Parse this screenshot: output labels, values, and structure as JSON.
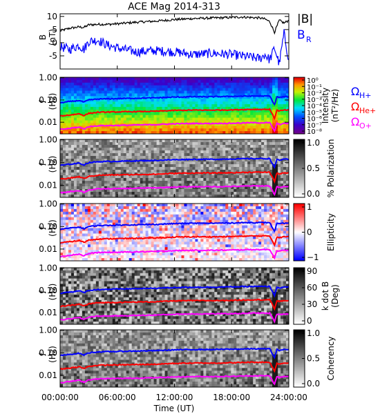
{
  "chart_data": [
    {
      "type": "line",
      "title": "ACE Mag 2014-313",
      "ylabel": "B",
      "yunit": "(nT)",
      "ylim": [
        -10,
        11
      ],
      "yticks": [
        "10",
        "5",
        "0",
        "-5"
      ],
      "ytick_values": [
        10,
        5,
        0,
        -5
      ],
      "legend": [
        "|B|",
        "B"
      ],
      "legend_sub": [
        "",
        "R"
      ],
      "legend_colors": [
        "#000000",
        "#0000ff"
      ],
      "x": [
        "00:00",
        "01:00",
        "02:00",
        "02:30",
        "03:00",
        "04:00",
        "05:00",
        "06:00",
        "08:00",
        "10:00",
        "12:00",
        "14:00",
        "16:00",
        "18:00",
        "19:00",
        "20:00",
        "21:00",
        "21:30",
        "22:00",
        "22:30",
        "23:00",
        "23:30",
        "24:00"
      ],
      "series": [
        {
          "name": "|B|",
          "color": "#000000",
          "values": [
            4.5,
            5.5,
            6.0,
            5.8,
            6.8,
            7.0,
            7.0,
            7.2,
            7.8,
            8.2,
            8.8,
            9.2,
            9.4,
            9.6,
            9.8,
            9.6,
            9.4,
            9.0,
            8.0,
            4.0,
            8.5,
            7.5,
            8.5
          ]
        },
        {
          "name": "B",
          "color": "#0000ff",
          "values": [
            -1.5,
            -2.5,
            -1.0,
            -2.5,
            0.5,
            1.0,
            -1.0,
            -2.0,
            -3.5,
            -3.0,
            -3.5,
            -4.5,
            -4.0,
            -4.5,
            -5.0,
            -5.5,
            -6.0,
            -4.5,
            -6.5,
            -2.0,
            -8.0,
            3.5,
            -6.5
          ]
        }
      ]
    },
    {
      "type": "heatmap",
      "ylabel": "f",
      "yunit": "(Hz)",
      "yticks": [
        "1.00",
        "0.10",
        "0.01"
      ],
      "ytick_values": [
        1,
        0.1,
        0.01
      ],
      "log_y": true,
      "colorbar_label": "Intensity",
      "colorbar_unit": "(nT²/Hz)",
      "colorbar_ticks": [
        "10⁰",
        "10⁻¹",
        "10⁻²",
        "10⁻³",
        "10⁻⁴",
        "10⁻⁵",
        "10⁻⁶",
        "10⁻⁷",
        "10⁻⁸"
      ],
      "colormap": "rainbow",
      "lines": [
        "H+",
        "He+",
        "O+"
      ]
    },
    {
      "type": "heatmap",
      "ylabel": "f",
      "yunit": "(Hz)",
      "yticks": [
        "1.00",
        "0.10",
        "0.01"
      ],
      "ytick_values": [
        1,
        0.1,
        0.01
      ],
      "log_y": true,
      "colorbar_label": "% Polarization",
      "colorbar_ticks": [
        "1.0",
        "0.5",
        "0.0"
      ],
      "colormap": "gray",
      "lines": [
        "H+",
        "He+",
        "O+"
      ]
    },
    {
      "type": "heatmap",
      "ylabel": "f",
      "yunit": "(Hz)",
      "yticks": [
        "1.00",
        "0.10",
        "0.01"
      ],
      "ytick_values": [
        1,
        0.1,
        0.01
      ],
      "log_y": true,
      "colorbar_label": "Ellipticity",
      "colorbar_ticks": [
        "1",
        "0",
        "−1"
      ],
      "colormap": "red-white-blue",
      "lines": [
        "H+",
        "He+",
        "O+"
      ]
    },
    {
      "type": "heatmap",
      "ylabel": "f",
      "yunit": "(Hz)",
      "yticks": [
        "1.00",
        "0.10",
        "0.01"
      ],
      "ytick_values": [
        1,
        0.1,
        0.01
      ],
      "log_y": true,
      "colorbar_label": "k dot B",
      "colorbar_unit": "(Deg)",
      "colorbar_ticks": [
        "90",
        "60",
        "30",
        "0"
      ],
      "colormap": "gray",
      "lines": [
        "H+",
        "He+",
        "O+"
      ]
    },
    {
      "type": "heatmap",
      "ylabel": "f",
      "yunit": "(Hz)",
      "yticks": [
        "1.00",
        "0.10",
        "0.01"
      ],
      "ytick_values": [
        1,
        0.1,
        0.01
      ],
      "log_y": true,
      "colorbar_label": "Coherency",
      "colorbar_ticks": [
        "1.0",
        "0.5",
        "0.0"
      ],
      "colormap": "gray",
      "lines": [
        "H+",
        "He+",
        "O+"
      ]
    }
  ],
  "gyro_legend": [
    {
      "symbol": "Ω",
      "sub": "H+",
      "color": "#0000ff"
    },
    {
      "symbol": "Ω",
      "sub": "He+",
      "color": "#ff0000"
    },
    {
      "symbol": "Ω",
      "sub": "O+",
      "color": "#ff00ff"
    }
  ],
  "gyro_lines": {
    "x": [
      "00:00",
      "01:00",
      "02:00",
      "02:30",
      "03:00",
      "04:00",
      "06:00",
      "08:00",
      "10:00",
      "12:00",
      "14:00",
      "16:00",
      "18:00",
      "20:00",
      "22:00",
      "22:30",
      "22:45",
      "23:00",
      "23:30",
      "24:00"
    ],
    "H+": [
      0.075,
      0.085,
      0.095,
      0.08,
      0.1,
      0.11,
      0.115,
      0.12,
      0.125,
      0.135,
      0.14,
      0.14,
      0.145,
      0.15,
      0.15,
      0.06,
      0.14,
      0.13,
      0.14,
      0.14
    ],
    "He+": [
      0.019,
      0.021,
      0.024,
      0.02,
      0.025,
      0.028,
      0.029,
      0.03,
      0.031,
      0.034,
      0.035,
      0.035,
      0.036,
      0.038,
      0.038,
      0.015,
      0.035,
      0.032,
      0.035,
      0.035
    ],
    "O+": [
      0.0047,
      0.0053,
      0.006,
      0.005,
      0.0063,
      0.007,
      0.0072,
      0.0075,
      0.0078,
      0.0085,
      0.0088,
      0.0088,
      0.009,
      0.0095,
      0.0095,
      0.004,
      0.0088,
      0.008,
      0.0088,
      0.0088
    ]
  },
  "xaxis": {
    "ticks": [
      "00:00:00",
      "06:00:00",
      "12:00:00",
      "18:00:00",
      "24:00:00"
    ],
    "tick_hours": [
      0,
      6,
      12,
      18,
      24
    ],
    "label": "Time (UT)"
  }
}
